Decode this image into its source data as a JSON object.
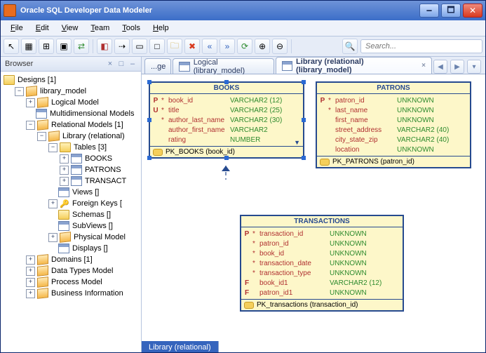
{
  "window": {
    "title": "Oracle SQL Developer Data Modeler"
  },
  "menu": {
    "items": [
      "File",
      "Edit",
      "View",
      "Team",
      "Tools",
      "Help"
    ]
  },
  "search": {
    "placeholder": "Search..."
  },
  "browser": {
    "title": "Browser",
    "root": "Designs [1]",
    "model": "library_model",
    "logical": "Logical Model",
    "multidim": "Multidimensional Models",
    "relmodels": "Relational Models [1]",
    "library": "Library (relational)",
    "tables": "Tables [3]",
    "t_books": "BOOKS",
    "t_patrons": "PATRONS",
    "t_trans": "TRANSACT",
    "views": "Views []",
    "fkeys": "Foreign Keys [",
    "schemas": "Schemas []",
    "subviews": "SubViews []",
    "physical": "Physical Model",
    "displays": "Displays []",
    "domains": "Domains [1]",
    "datatypes": "Data Types Model",
    "process": "Process Model",
    "business": "Business Information"
  },
  "tabs": {
    "t0": "...ge",
    "t1": "Logical (library_model)",
    "t2": "Library (relational) (library_model)"
  },
  "books": {
    "title": "BOOKS",
    "cols": [
      {
        "m": "P",
        "a": "*",
        "n": "book_id",
        "t": "VARCHAR2 (12)"
      },
      {
        "m": "U",
        "a": "*",
        "n": "title",
        "t": "VARCHAR2 (25)"
      },
      {
        "m": "",
        "a": "*",
        "n": "author_last_name",
        "t": "VARCHAR2 (30)"
      },
      {
        "m": "",
        "a": "",
        "n": "author_first_name",
        "t": "VARCHAR2"
      },
      {
        "m": "",
        "a": "",
        "n": "rating",
        "t": "NUMBER"
      }
    ],
    "pk": "PK_BOOKS (book_id)"
  },
  "patrons": {
    "title": "PATRONS",
    "cols": [
      {
        "m": "P",
        "a": "*",
        "n": "patron_id",
        "t": "UNKNOWN"
      },
      {
        "m": "",
        "a": "*",
        "n": "last_name",
        "t": "UNKNOWN"
      },
      {
        "m": "",
        "a": "",
        "n": "first_name",
        "t": "UNKNOWN"
      },
      {
        "m": "",
        "a": "",
        "n": "street_address",
        "t": "VARCHAR2 (40)"
      },
      {
        "m": "",
        "a": "",
        "n": "city_state_zip",
        "t": "VARCHAR2 (40)"
      },
      {
        "m": "",
        "a": "",
        "n": "location",
        "t": "UNKNOWN"
      }
    ],
    "pk": "PK_PATRONS (patron_id)"
  },
  "trans": {
    "title": "TRANSACTIONS",
    "cols": [
      {
        "m": "P",
        "a": "*",
        "n": "transaction_id",
        "t": "UNKNOWN"
      },
      {
        "m": "",
        "a": "*",
        "n": "patron_id",
        "t": "UNKNOWN"
      },
      {
        "m": "",
        "a": "*",
        "n": "book_id",
        "t": "UNKNOWN"
      },
      {
        "m": "",
        "a": "*",
        "n": "transaction_date",
        "t": "UNKNOWN"
      },
      {
        "m": "",
        "a": "*",
        "n": "transaction_type",
        "t": "UNKNOWN"
      },
      {
        "m": "F",
        "a": "",
        "n": "book_id1",
        "t": "VARCHAR2 (12)"
      },
      {
        "m": "F",
        "a": "",
        "n": "patron_id1",
        "t": "UNKNOWN"
      }
    ],
    "pk": "PK_transactions (transaction_id)"
  },
  "bottom_tab": "Library (relational)"
}
